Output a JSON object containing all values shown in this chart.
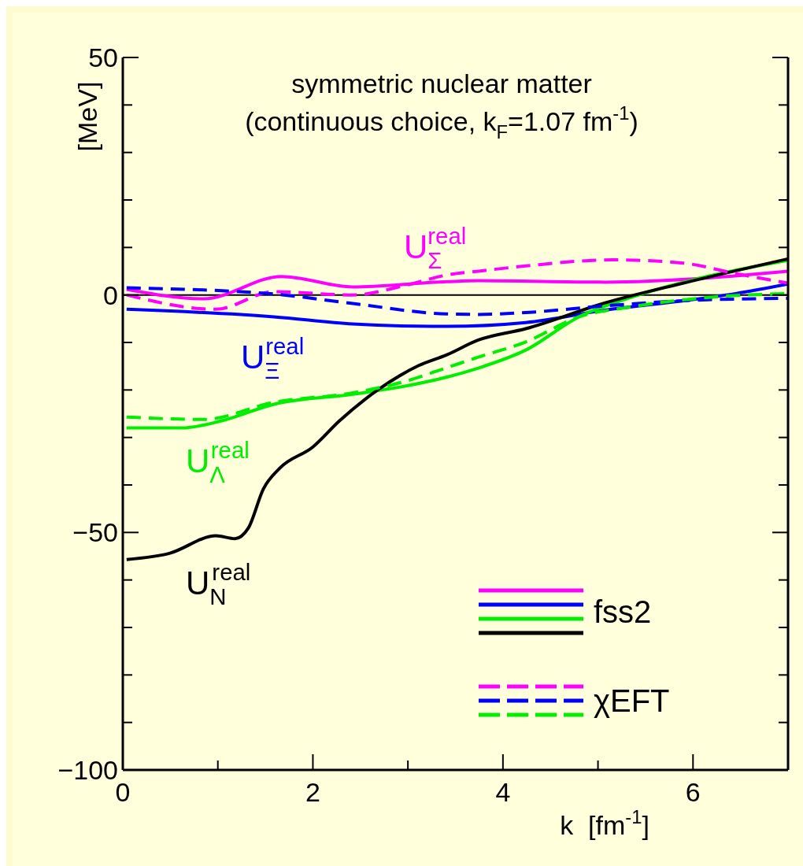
{
  "chart_data": {
    "type": "line",
    "title": "symmetric nuclear matter",
    "subtitle": "(continuous choice, k$_{F}$=1.07 fm$^{-1}$)",
    "xlabel": "k  [fm$^{-1}$]",
    "ylabel": "[MeV]",
    "xlim": [
      0,
      7
    ],
    "xticks": [
      0,
      {
        "value": 1,
        "label": null
      },
      2,
      {
        "value": 3,
        "label": null
      },
      4,
      {
        "value": 5,
        "label": null
      },
      6
    ],
    "ylim": [
      -100,
      50
    ],
    "yticks": [
      {
        "value": -100,
        "label": "−100"
      },
      {
        "value": -90,
        "label": null
      },
      {
        "value": -80,
        "label": null
      },
      {
        "value": -70,
        "label": null
      },
      {
        "value": -60,
        "label": null
      },
      {
        "value": -50,
        "label": "−50"
      },
      {
        "value": -40,
        "label": null
      },
      {
        "value": -30,
        "label": null
      },
      {
        "value": -20,
        "label": null
      },
      {
        "value": -10,
        "label": null
      },
      0,
      {
        "value": 10,
        "label": null
      },
      {
        "value": 20,
        "label": null
      },
      {
        "value": 30,
        "label": null
      },
      {
        "value": 40,
        "label": null
      },
      50
    ],
    "grid": false,
    "legend": "bottom right",
    "ref_lines": [
      {
        "axis": "y",
        "value": 0,
        "color": "#000000"
      }
    ],
    "series": [
      {
        "name": "fss2",
        "color": "#ff00ff",
        "line_style": "solid",
        "x": [
          0.04,
          0.85,
          1.67,
          2.42,
          3.41,
          3.74,
          5.07,
          6.17,
          7
        ],
        "values": [
          1.2,
          -0.8,
          3.9,
          1.7,
          2.8,
          3.0,
          2.7,
          3.6,
          5.0
        ]
      },
      {
        "color": "#0000ff",
        "line_style": "solid",
        "x": [
          0.04,
          1.59,
          2.42,
          3.25,
          3.41,
          4.24,
          5.07,
          5.9,
          6.45,
          7
        ],
        "values": [
          -3.0,
          -4.6,
          -6.1,
          -6.6,
          -6.6,
          -5.8,
          -3.2,
          -1.2,
          0.3,
          2.3
        ]
      },
      {
        "color": "#00ee00",
        "line_style": "solid",
        "x": [
          0.04,
          0.62,
          1.04,
          1.59,
          2.42,
          2.97,
          3.41,
          3.74,
          4.24,
          4.8,
          5.35,
          6.17,
          7
        ],
        "values": [
          -28.0,
          -28.0,
          -26.5,
          -23.0,
          -20.9,
          -19.2,
          -17.3,
          -15.4,
          -11.6,
          -4.6,
          -0.5,
          4.0,
          7.3
        ]
      },
      {
        "color": "#000000",
        "line_style": "solid",
        "x": [
          0.04,
          0.49,
          0.98,
          1.18,
          1.32,
          1.48,
          1.65,
          2.0,
          2.28,
          2.69,
          3.11,
          3.41,
          3.74,
          4.24,
          5.07,
          5.9,
          7
        ],
        "values": [
          -55.7,
          -54.4,
          -50.7,
          -51.3,
          -49.1,
          -40.8,
          -36.5,
          -32.0,
          -26.5,
          -19.9,
          -14.9,
          -12.6,
          -9.5,
          -7.1,
          -1.7,
          2.5,
          7.6
        ]
      },
      {
        "name": "χEFT",
        "color": "#ff00ff",
        "line_style": "dashed",
        "x": [
          0.04,
          0.98,
          1.59,
          2.42,
          2.97,
          3.41,
          3.74,
          4.24,
          5.15,
          5.9,
          6.45,
          7
        ],
        "values": [
          0,
          -3.0,
          0.7,
          0,
          2.0,
          4.2,
          5.0,
          6.1,
          7.4,
          6.7,
          4.5,
          2.5
        ]
      },
      {
        "color": "#0000ff",
        "line_style": "dashed",
        "x": [
          0.04,
          1.59,
          2.42,
          3.41,
          3.74,
          4.24,
          5.07,
          5.9,
          7
        ],
        "values": [
          1.5,
          0.2,
          -1.8,
          -4.0,
          -4.1,
          -3.7,
          -2.3,
          -1.2,
          -0.7
        ]
      },
      {
        "color": "#00ee00",
        "line_style": "dashed",
        "x": [
          0.04,
          0.85,
          1.59,
          2.42,
          2.97,
          3.41,
          3.74,
          4.24,
          4.8,
          5.35,
          6.17,
          7
        ],
        "values": [
          -25.7,
          -26.2,
          -22.6,
          -20.6,
          -18.2,
          -15.3,
          -13.1,
          -9.9,
          -4.6,
          -2.5,
          -0.5,
          0.3
        ]
      }
    ],
    "annotations": [
      "U$_{Σ}$$^{real}$",
      "U$_{Ξ}$$^{real}$",
      "U$_{Λ}$$^{real}$",
      "U$_{N}$$^{real}$"
    ]
  }
}
